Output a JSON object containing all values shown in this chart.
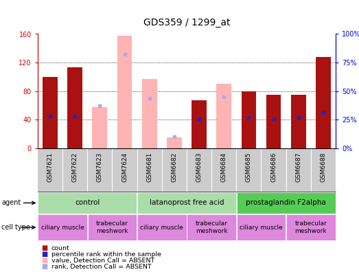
{
  "title": "GDS359 / 1299_at",
  "samples": [
    "GSM7621",
    "GSM7622",
    "GSM7623",
    "GSM7624",
    "GSM6681",
    "GSM6682",
    "GSM6683",
    "GSM6684",
    "GSM6685",
    "GSM6686",
    "GSM6687",
    "GSM6688"
  ],
  "count_values": [
    100,
    113,
    null,
    null,
    null,
    null,
    67,
    null,
    80,
    75,
    75,
    128
  ],
  "count_rank": [
    28,
    28,
    null,
    null,
    null,
    null,
    26,
    null,
    27,
    26,
    27,
    31
  ],
  "absent_value": [
    null,
    null,
    58,
    158,
    97,
    15,
    null,
    90,
    null,
    null,
    null,
    null
  ],
  "absent_rank": [
    null,
    null,
    37,
    82,
    44,
    10,
    null,
    45,
    null,
    null,
    null,
    null
  ],
  "ylim_left": [
    0,
    160
  ],
  "ylim_right": [
    0,
    100
  ],
  "yticks_left": [
    0,
    40,
    80,
    120,
    160
  ],
  "yticks_right": [
    0,
    25,
    50,
    75,
    100
  ],
  "ytick_labels_left": [
    "0",
    "40",
    "80",
    "120",
    "160"
  ],
  "ytick_labels_right": [
    "0%",
    "25%",
    "50%",
    "75%",
    "100%"
  ],
  "agent_groups": [
    {
      "label": "control",
      "start": 0,
      "end": 3,
      "color": "#aaddaa"
    },
    {
      "label": "latanoprost free acid",
      "start": 4,
      "end": 7,
      "color": "#aaddaa"
    },
    {
      "label": "prostaglandin F2alpha",
      "start": 8,
      "end": 11,
      "color": "#55cc55"
    }
  ],
  "cell_type_groups": [
    {
      "label": "ciliary muscle",
      "start": 0,
      "end": 1,
      "color": "#dd88dd"
    },
    {
      "label": "trabecular\nmeshwork",
      "start": 2,
      "end": 3,
      "color": "#dd88dd"
    },
    {
      "label": "ciliary muscle",
      "start": 4,
      "end": 5,
      "color": "#dd88dd"
    },
    {
      "label": "trabecular\nmeshwork",
      "start": 6,
      "end": 7,
      "color": "#dd88dd"
    },
    {
      "label": "ciliary muscle",
      "start": 8,
      "end": 9,
      "color": "#dd88dd"
    },
    {
      "label": "trabecular\nmeshwork",
      "start": 10,
      "end": 11,
      "color": "#dd88dd"
    }
  ],
  "bar_width": 0.6,
  "count_color": "#aa1111",
  "absent_color": "#ffb3b3",
  "rank_color": "#2222cc",
  "absent_rank_color": "#aaaaee",
  "bg_color": "#ffffff",
  "sample_bg_color": "#cccccc",
  "left_axis_color": "#cc0000",
  "right_axis_color": "#0000cc"
}
